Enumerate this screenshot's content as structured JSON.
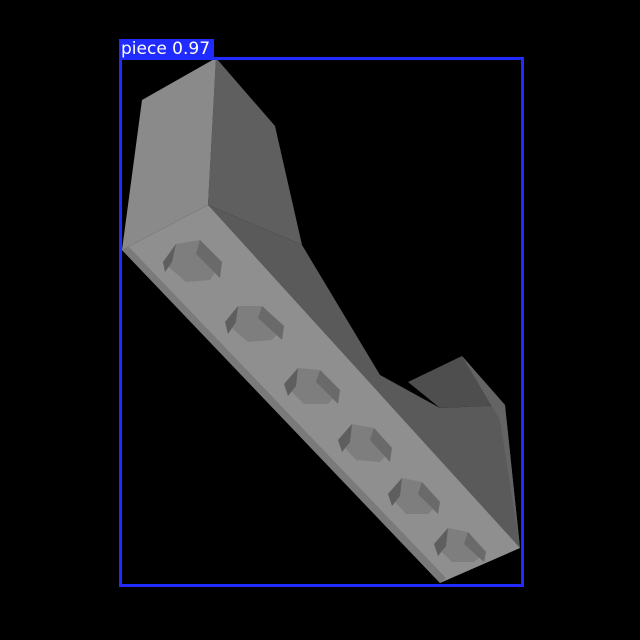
{
  "detection": {
    "label": "piece 0.97",
    "class_name": "piece",
    "confidence": 0.97,
    "box_color": "#1f2bff",
    "label_text_color": "#ffffff"
  },
  "scene": {
    "background_color": "#000000",
    "object_colors": {
      "light_face": "#8f8f8f",
      "mid_face": "#7a7a7a",
      "dark_face": "#5f5f5f",
      "shadow_face": "#4e4e4e"
    }
  }
}
